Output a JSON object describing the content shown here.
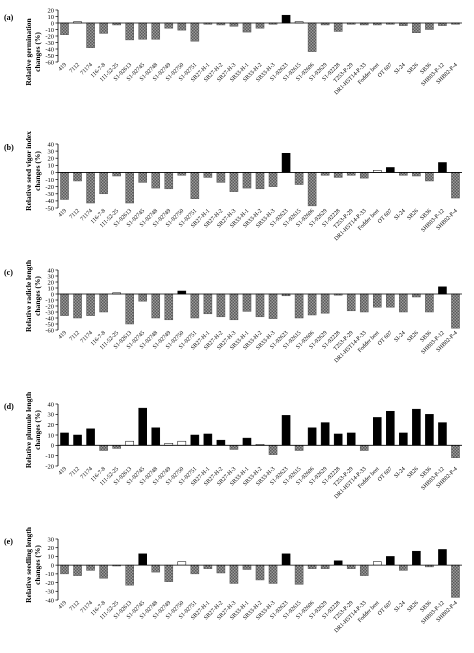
{
  "colors": {
    "positive_significant": "#000000",
    "positive_nonsignificant": "#ffffff",
    "negative_fill": "#9a9a9a",
    "negative_hatch": "#5a5a5a",
    "axis": "#000000"
  },
  "chart_data": [
    {
      "type": "bar",
      "panel_label": "(a)",
      "ylabel": [
        "Relative germination",
        "changes (%)"
      ],
      "ylim": [
        -60,
        20
      ],
      "yticks": [
        20,
        10,
        0,
        -10,
        -20,
        -30,
        -40,
        -50,
        -60
      ],
      "ytick_labels": [
        "20",
        "10",
        "0",
        "-10",
        "-20",
        "-30",
        "-40",
        "-50",
        "-60"
      ],
      "categories": [
        "419",
        "7112",
        "71174",
        "116-7-8",
        "111-52-25",
        "S1-92613",
        "S1-92745",
        "S1-92748",
        "S1-92749",
        "S1-92750",
        "S1-92751",
        "SB27-H-1",
        "SB27-H-2",
        "SB27-H-3",
        "SB33-H-1",
        "SB33-H-2",
        "SB33-H-3",
        "S1-92623",
        "S1-92615",
        "S1-92606",
        "S1-92629",
        "S1-92228",
        "T253-P-29",
        "DR1-H5T14-P-33",
        "Fodder beet",
        "OT 607",
        "SI-24",
        "SB26",
        "SB36",
        "SHB03-P-12",
        "SHB02-P-4"
      ],
      "values": [
        -18,
        2,
        -38,
        -16,
        -3,
        -26,
        -25,
        -25,
        -8,
        -11,
        -28,
        -2,
        -3,
        -5,
        -14,
        -8,
        -2,
        12,
        2,
        -44,
        -3,
        -13,
        -2,
        -3,
        -3,
        -2,
        -4,
        -15,
        -10,
        -4,
        -2
      ]
    },
    {
      "type": "bar",
      "panel_label": "(b)",
      "ylabel": [
        "Relative seed vigor index",
        "changes (%)"
      ],
      "ylim": [
        -50,
        40
      ],
      "yticks": [
        40,
        30,
        20,
        10,
        0,
        -10,
        -20,
        -30,
        -40,
        -50
      ],
      "ytick_labels": [
        "40",
        "30",
        "20",
        "10",
        "0",
        "-10",
        "-20",
        "-30",
        "-40",
        "-50"
      ],
      "categories": [
        "419",
        "7112",
        "71174",
        "116-7-8",
        "111-52-25",
        "S1-92613",
        "S1-92745",
        "S1-92748",
        "S1-92749",
        "S1-92750",
        "S1-92751",
        "SB27-H-1",
        "SB27-H-2",
        "SB27-H-3",
        "SB33-H-1",
        "SB33-H-2",
        "SB33-H-3",
        "S1-92623",
        "S1-92615",
        "S1-92606",
        "S1-92629",
        "S1-92228",
        "T253-P-29",
        "DR1-H5T14-P-33",
        "Fodder beet",
        "OT 607",
        "SI-24",
        "SB26",
        "SB36",
        "SHB03-P-12",
        "SHB02-P-4"
      ],
      "values": [
        -38,
        -12,
        -43,
        -30,
        -5,
        -43,
        -14,
        -22,
        -23,
        -4,
        -37,
        -7,
        -14,
        -27,
        -22,
        -23,
        -20,
        27,
        -17,
        -47,
        -4,
        -7,
        -4,
        -8,
        3,
        7,
        -4,
        -5,
        -12,
        14,
        -36
      ]
    },
    {
      "type": "bar",
      "panel_label": "(c)",
      "ylabel": [
        "Relative radicle length",
        "changes (%)"
      ],
      "ylim": [
        -60,
        40
      ],
      "yticks": [
        40,
        30,
        20,
        10,
        0,
        -10,
        -20,
        -30,
        -40,
        -50,
        -60
      ],
      "ytick_labels": [
        "40",
        "30",
        "20",
        "10",
        "0",
        "-10",
        "-20",
        "-30",
        "-40",
        "-50",
        "-60"
      ],
      "categories": [
        "419",
        "7112",
        "71174",
        "116-7-8",
        "111-52-25",
        "S1-92613",
        "S1-92745",
        "S1-92748",
        "S1-92749",
        "S1-92750",
        "S1-92751",
        "SB27-H-1",
        "SB27-H-2",
        "SB27-H-3",
        "SB33-H-1",
        "SB33-H-2",
        "SB33-H-3",
        "S1-92623",
        "S1-92615",
        "S1-92606",
        "S1-92629",
        "S1-92228",
        "T253-P-29",
        "DR1-H5T14-P-33",
        "Fodder beet",
        "OT 607",
        "SI-24",
        "SB26",
        "SB36",
        "SHB03-P-12",
        "SHB02-P-4"
      ],
      "values": [
        -36,
        -40,
        -36,
        -30,
        2,
        -50,
        -12,
        -40,
        -43,
        5,
        -40,
        -33,
        -38,
        -43,
        -29,
        -38,
        -41,
        -3,
        -40,
        -35,
        -32,
        -2,
        -28,
        -30,
        -22,
        -22,
        -30,
        -5,
        -30,
        12,
        -57
      ]
    },
    {
      "type": "bar",
      "panel_label": "(d)",
      "ylabel": [
        "Relative plumule length",
        "changes (%)"
      ],
      "ylim": [
        -20,
        40
      ],
      "yticks": [
        40,
        30,
        20,
        10,
        0,
        -10,
        -20
      ],
      "ytick_labels": [
        "40",
        "30",
        "20",
        "10",
        "0",
        "-10",
        "-20"
      ],
      "categories": [
        "419",
        "7112",
        "71174",
        "116-7-8",
        "111-52-25",
        "S1-92613",
        "S1-92745",
        "S1-92748",
        "S1-92749",
        "S1-92750",
        "S1-92751",
        "SB27-H-1",
        "SB27-H-2",
        "SB27-H-3",
        "SB33-H-1",
        "SB33-H-2",
        "SB33-H-3",
        "S1-92623",
        "S1-92615",
        "S1-92606",
        "S1-92629",
        "S1-92228",
        "T253-P-29",
        "DR1-H5T14-P-33",
        "Fodder beet",
        "OT 607",
        "SI-24",
        "SB26",
        "SB36",
        "SHB03-P-12",
        "SHB02-P-4"
      ],
      "values": [
        12,
        10,
        16,
        -5,
        -3,
        4,
        36,
        17,
        2,
        4,
        10,
        11,
        5,
        -4,
        7,
        1,
        -9,
        29,
        -5,
        17,
        22,
        11,
        12,
        -5,
        27,
        33,
        12,
        35,
        30,
        22,
        -12
      ]
    },
    {
      "type": "bar",
      "panel_label": "(e)",
      "ylabel": [
        "Relative seedling length",
        "changes (%)"
      ],
      "ylim": [
        -40,
        30
      ],
      "yticks": [
        30,
        20,
        10,
        0,
        -10,
        -20,
        -30,
        -40
      ],
      "ytick_labels": [
        "30",
        "20",
        "10",
        "0",
        "-10",
        "-20",
        "-30",
        "-40"
      ],
      "categories": [
        "419",
        "7112",
        "71174",
        "116-7-8",
        "111-52-25",
        "S1-92613",
        "S1-92745",
        "S1-92748",
        "S1-92749",
        "S1-92750",
        "S1-92751",
        "SB27-H-1",
        "SB27-H-2",
        "SB27-H-3",
        "SB33-H-1",
        "SB33-H-2",
        "SB33-H-3",
        "S1-92623",
        "S1-92615",
        "S1-92606",
        "S1-92629",
        "S1-92228",
        "T253-P-29",
        "DR1-H5T14-P-33",
        "Fodder beet",
        "OT 607",
        "SI-24",
        "SB26",
        "SB36",
        "SHB03-P-12",
        "SHB02-P-4"
      ],
      "values": [
        -10,
        -12,
        -6,
        -15,
        -1,
        -23,
        13,
        -8,
        -19,
        4,
        -10,
        -4,
        -9,
        -21,
        -5,
        -17,
        -21,
        13,
        -22,
        -4,
        -4,
        5,
        -4,
        -12,
        4,
        10,
        -6,
        16,
        -2,
        18,
        -37
      ]
    }
  ]
}
